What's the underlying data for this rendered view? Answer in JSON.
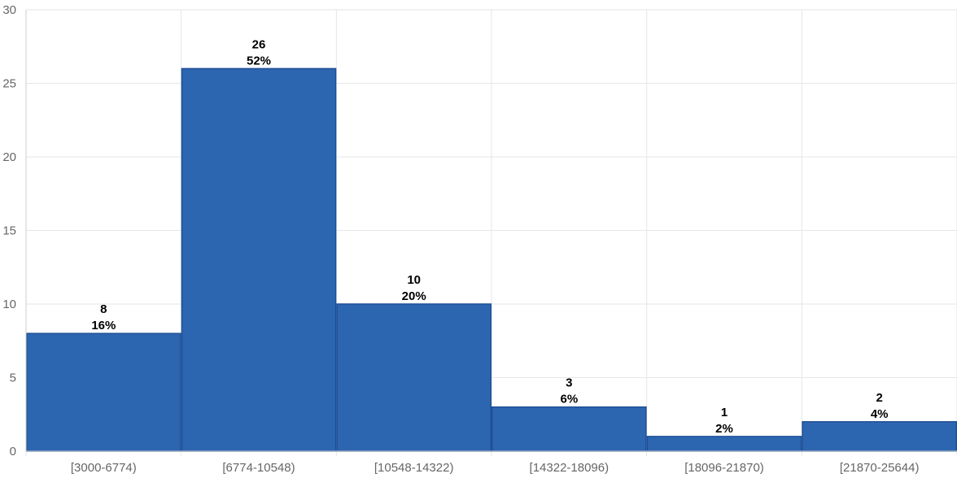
{
  "chart_data": {
    "type": "bar",
    "categories": [
      "[3000-6774)",
      "[6774-10548)",
      "[10548-14322)",
      "[14322-18096)",
      "[18096-21870)",
      "[21870-25644)"
    ],
    "values": [
      8,
      26,
      10,
      3,
      1,
      2
    ],
    "percent_labels": [
      "16%",
      "52%",
      "20%",
      "6%",
      "2%",
      "4%"
    ],
    "ylim": [
      0,
      30
    ],
    "yticks": [
      "0",
      "5",
      "10",
      "15",
      "20",
      "25",
      "30"
    ],
    "grid": true,
    "bar_color": "#2d66b0",
    "bar_border_color": "#1f4f96",
    "title": "",
    "xlabel": "",
    "ylabel": ""
  }
}
